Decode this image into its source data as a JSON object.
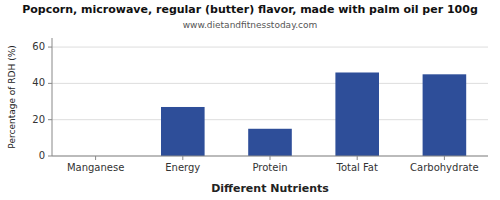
{
  "chart_data": {
    "type": "bar",
    "title": "Popcorn, microwave, regular (butter) flavor, made with palm oil per 100g",
    "subtitle": "www.dietandfitnesstoday.com",
    "categories": [
      "Manganese",
      "Energy",
      "Protein",
      "Total Fat",
      "Carbohydrate"
    ],
    "values": [
      0,
      27,
      15,
      46,
      45
    ],
    "color": "#2e4e99",
    "xlabel": "Different Nutrients",
    "ylabel": "Percentage of RDH (%)",
    "ylim": [
      0,
      65
    ],
    "yticks": [
      0,
      20,
      40,
      60
    ],
    "grid": true
  }
}
